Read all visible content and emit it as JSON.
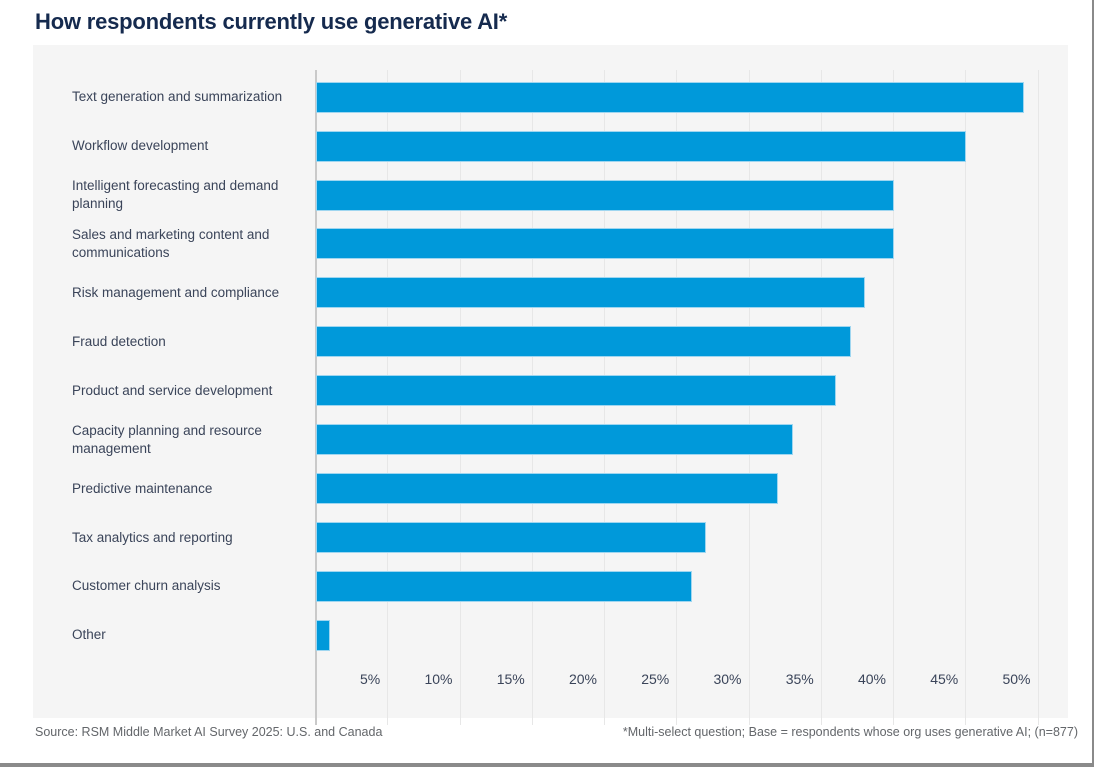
{
  "header": {
    "title": "How respondents currently use generative AI*"
  },
  "chart_data": {
    "type": "bar",
    "orientation": "horizontal",
    "title": "How respondents currently use generative AI*",
    "categories": [
      "Text generation and summarization",
      "Workflow development",
      "Intelligent forecasting and demand planning",
      "Sales and marketing content and communications",
      "Risk management and compliance",
      "Fraud detection",
      "Product and service development",
      "Capacity planning and resource management",
      "Predictive maintenance",
      "Tax analytics and reporting",
      "Customer churn analysis",
      "Other"
    ],
    "values": [
      49,
      45,
      40,
      40,
      38,
      37,
      36,
      33,
      32,
      27,
      26,
      1
    ],
    "unit": "%",
    "x_ticks": [
      5,
      10,
      15,
      20,
      25,
      30,
      35,
      40,
      45,
      50
    ],
    "x_tick_labels": [
      "5%",
      "10%",
      "15%",
      "20%",
      "25%",
      "30%",
      "35%",
      "40%",
      "45%",
      "50%"
    ],
    "xlim": [
      0,
      52
    ],
    "grid": true,
    "legend": "none",
    "xlabel": "",
    "ylabel": ""
  },
  "footer": {
    "source": "Source: RSM Middle Market AI Survey 2025: U.S. and Canada",
    "note": "*Multi-select question; Base = respondents whose org uses generative AI; (n=877)"
  },
  "colors": {
    "title": "#152A4E",
    "label": "#3A4459",
    "panel_bg": "#F5F5F5",
    "gridline": "#E7E7E7",
    "axis_line": "#C9C9C9",
    "bar": "#0099DA",
    "bar_edge": "#9FD6F0",
    "footer_text": "#63666A",
    "frame": "#8A8A8A"
  }
}
